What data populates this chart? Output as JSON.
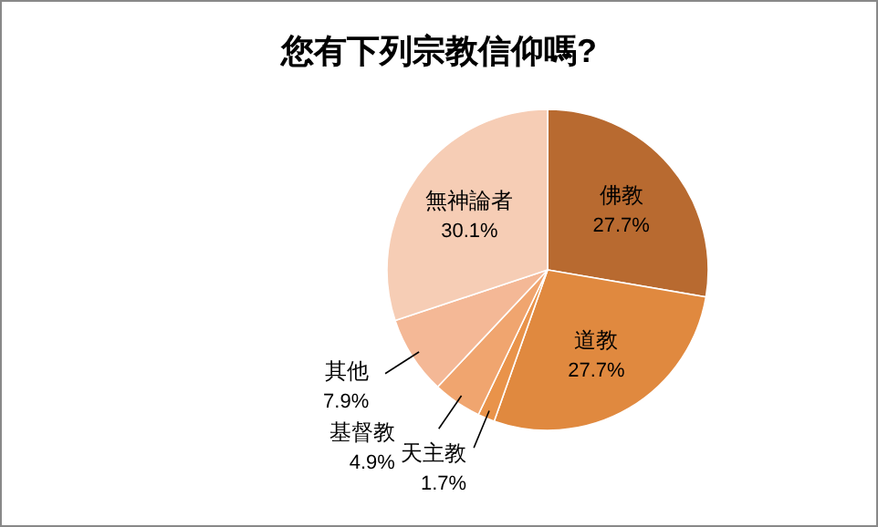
{
  "chart_data": {
    "type": "pie",
    "title": "您有下列宗教信仰嗎?",
    "categories": [
      "佛教",
      "道教",
      "天主教",
      "基督教",
      "其他",
      "無神論者"
    ],
    "values": [
      27.7,
      27.7,
      1.7,
      4.9,
      7.9,
      30.1
    ],
    "value_labels": [
      "27.7%",
      "27.7%",
      "1.7%",
      "4.9%",
      "7.9%",
      "30.1%"
    ],
    "colors": [
      "#b86a30",
      "#e0893f",
      "#e9934a",
      "#f0a56f",
      "#f4b896",
      "#f6cdb5"
    ],
    "legend": false
  }
}
